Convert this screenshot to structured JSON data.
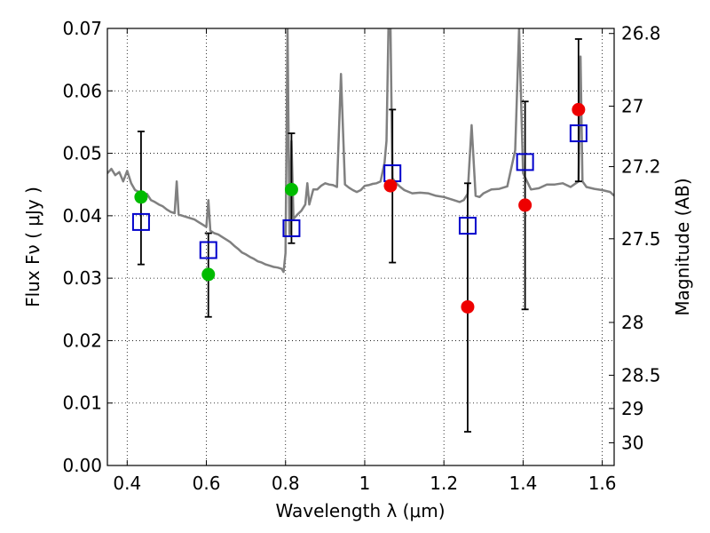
{
  "chart_data": {
    "type": "scatter",
    "title": "",
    "xlabel": "Wavelength  λ (μm)",
    "ylabel": "Flux  Fν  ( μJy )",
    "ylabel_right": "Magnitude (AB)",
    "xlim": [
      0.35,
      1.63
    ],
    "ylim": [
      0.0,
      0.07
    ],
    "grid": true,
    "grid_style": "dotted",
    "x_ticks": [
      0.4,
      0.6,
      0.8,
      1.0,
      1.2,
      1.4,
      1.6
    ],
    "x_tick_labels": [
      "0.4",
      "0.6",
      "0.8",
      "1",
      "1.2",
      "1.4",
      "1.6"
    ],
    "y_ticks": [
      0.0,
      0.01,
      0.02,
      0.03,
      0.04,
      0.05,
      0.06,
      0.07
    ],
    "y_tick_labels": [
      "0.00",
      "0.01",
      "0.02",
      "0.03",
      "0.04",
      "0.05",
      "0.06",
      "0.07"
    ],
    "right_ticks": [
      {
        "mag": 26.8,
        "label": "26.8"
      },
      {
        "mag": 27.0,
        "label": "27"
      },
      {
        "mag": 27.2,
        "label": "27.2"
      },
      {
        "mag": 27.5,
        "label": "27.5"
      },
      {
        "mag": 28.0,
        "label": "28"
      },
      {
        "mag": 28.5,
        "label": "28.5"
      },
      {
        "mag": 29.0,
        "label": "29"
      },
      {
        "mag": 30.0,
        "label": "30"
      }
    ],
    "colors": {
      "spectrum": "#808080",
      "model_squares": "#0000cc",
      "green_points": "#00bb00",
      "red_points": "#ee0000",
      "error_bars": "#000000"
    },
    "spectrum": {
      "x": [
        0.35,
        0.36,
        0.37,
        0.38,
        0.39,
        0.4,
        0.41,
        0.42,
        0.43,
        0.44,
        0.45,
        0.46,
        0.47,
        0.48,
        0.49,
        0.5,
        0.51,
        0.52,
        0.525,
        0.53,
        0.54,
        0.55,
        0.56,
        0.57,
        0.58,
        0.59,
        0.6,
        0.605,
        0.61,
        0.62,
        0.63,
        0.64,
        0.65,
        0.66,
        0.67,
        0.68,
        0.69,
        0.7,
        0.71,
        0.72,
        0.73,
        0.74,
        0.75,
        0.76,
        0.77,
        0.78,
        0.79,
        0.795,
        0.8,
        0.805,
        0.81,
        0.815,
        0.82,
        0.83,
        0.84,
        0.85,
        0.855,
        0.86,
        0.87,
        0.88,
        0.89,
        0.9,
        0.91,
        0.92,
        0.93,
        0.94,
        0.95,
        0.96,
        0.97,
        0.98,
        0.99,
        1.0,
        1.01,
        1.02,
        1.03,
        1.04,
        1.05,
        1.055,
        1.06,
        1.065,
        1.07,
        1.08,
        1.09,
        1.1,
        1.12,
        1.14,
        1.16,
        1.18,
        1.2,
        1.22,
        1.24,
        1.25,
        1.26,
        1.27,
        1.28,
        1.29,
        1.3,
        1.32,
        1.34,
        1.36,
        1.38,
        1.39,
        1.4,
        1.42,
        1.44,
        1.46,
        1.48,
        1.5,
        1.52,
        1.54,
        1.545,
        1.55,
        1.56,
        1.58,
        1.6,
        1.62,
        1.63
      ],
      "y": [
        0.0468,
        0.0475,
        0.0465,
        0.047,
        0.0455,
        0.0472,
        0.0452,
        0.0441,
        0.0438,
        0.0432,
        0.0435,
        0.0425,
        0.0422,
        0.0418,
        0.0415,
        0.041,
        0.0406,
        0.0404,
        0.0455,
        0.0402,
        0.04,
        0.0398,
        0.0396,
        0.0394,
        0.039,
        0.0386,
        0.0382,
        0.0425,
        0.0376,
        0.0372,
        0.037,
        0.0366,
        0.0362,
        0.0358,
        0.0352,
        0.0347,
        0.0341,
        0.0338,
        0.0334,
        0.0331,
        0.0327,
        0.0325,
        0.0322,
        0.032,
        0.0318,
        0.0317,
        0.0315,
        0.031,
        0.034,
        0.07,
        0.037,
        0.052,
        0.0395,
        0.0402,
        0.0408,
        0.0418,
        0.0452,
        0.0418,
        0.0442,
        0.0442,
        0.0448,
        0.0452,
        0.045,
        0.0449,
        0.0446,
        0.0627,
        0.045,
        0.0445,
        0.0441,
        0.0438,
        0.0441,
        0.0448,
        0.0449,
        0.0451,
        0.0452,
        0.0455,
        0.0485,
        0.052,
        0.07,
        0.07,
        0.046,
        0.0452,
        0.0446,
        0.0441,
        0.0436,
        0.0437,
        0.0436,
        0.0432,
        0.043,
        0.0426,
        0.0422,
        0.0425,
        0.0435,
        0.0545,
        0.0432,
        0.043,
        0.0436,
        0.0442,
        0.0443,
        0.0447,
        0.0505,
        0.07,
        0.0468,
        0.0442,
        0.0444,
        0.045,
        0.045,
        0.0452,
        0.0446,
        0.0455,
        0.0655,
        0.0455,
        0.0446,
        0.0443,
        0.0441,
        0.0438,
        0.0432
      ]
    },
    "model_squares": {
      "x": [
        0.435,
        0.605,
        0.815,
        1.07,
        1.26,
        1.405,
        1.54
      ],
      "y": [
        0.039,
        0.0345,
        0.038,
        0.0468,
        0.0384,
        0.0486,
        0.0532
      ]
    },
    "green_points": {
      "x": [
        0.435,
        0.605,
        0.815
      ],
      "y": [
        0.043,
        0.0306,
        0.0442
      ]
    },
    "red_points": {
      "x": [
        1.065,
        1.26,
        1.405,
        1.54
      ],
      "y": [
        0.0448,
        0.0254,
        0.0417,
        0.057
      ]
    },
    "error_bars": [
      {
        "x": 0.435,
        "low": 0.0322,
        "high": 0.0535
      },
      {
        "x": 0.605,
        "low": 0.0238,
        "high": 0.0372
      },
      {
        "x": 0.815,
        "low": 0.0356,
        "high": 0.0532
      },
      {
        "x": 1.07,
        "low": 0.0325,
        "high": 0.057
      },
      {
        "x": 1.26,
        "low": 0.0054,
        "high": 0.0452
      },
      {
        "x": 1.405,
        "low": 0.025,
        "high": 0.0583
      },
      {
        "x": 1.54,
        "low": 0.0455,
        "high": 0.0683
      }
    ]
  }
}
